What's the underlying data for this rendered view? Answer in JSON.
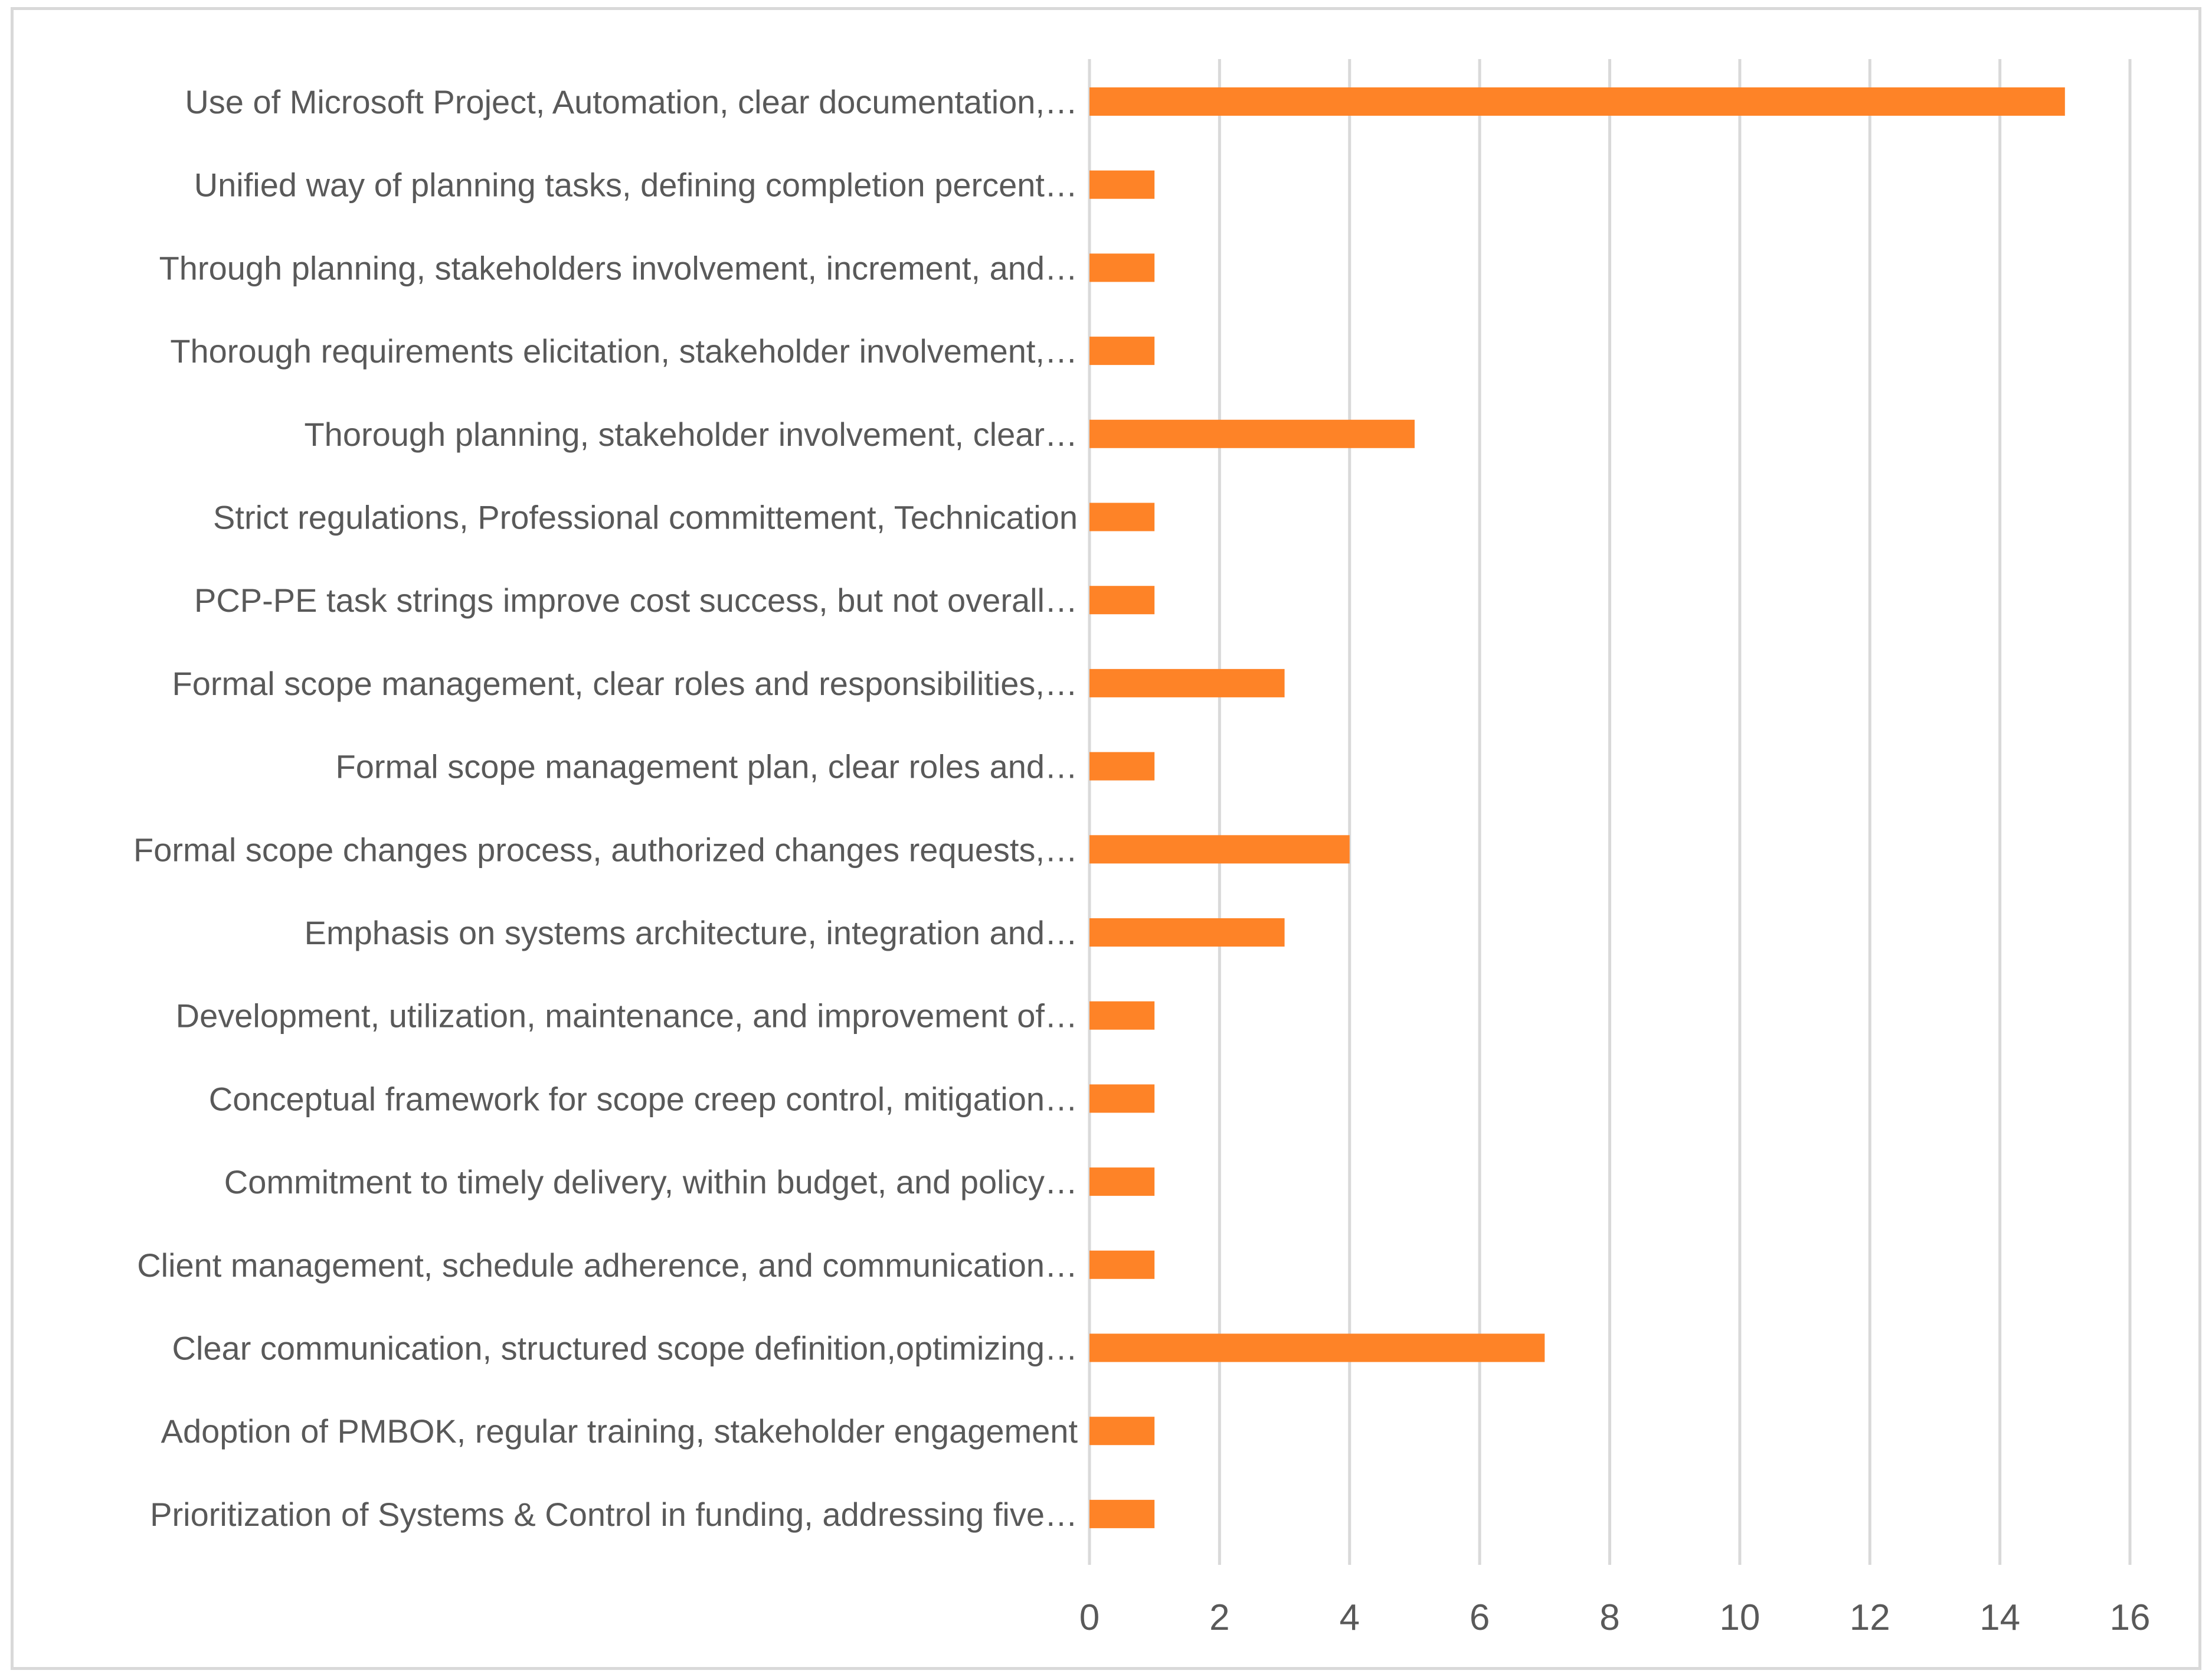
{
  "chart_data": {
    "type": "bar",
    "orientation": "horizontal",
    "title": "",
    "xlabel": "",
    "ylabel": "",
    "xlim": [
      0,
      16
    ],
    "x_ticks": [
      0,
      2,
      4,
      6,
      8,
      10,
      12,
      14,
      16
    ],
    "grid": "vertical",
    "legend": "none",
    "bar_color": "#fe8327",
    "gridline_color": "#d9d9d9",
    "label_color": "#595959",
    "categories": [
      "Use of Microsoft Project, Automation, clear documentation,…",
      "Unified way of planning tasks, defining completion percent…",
      "Through planning, stakeholders involvement, increment, and…",
      "Thorough requirements elicitation, stakeholder involvement,…",
      "Thorough planning, stakeholder involvement, clear…",
      "Strict regulations, Professional committement, Technication",
      "PCP-PE task strings improve cost success, but not overall…",
      "Formal scope management, clear roles and responsibilities,…",
      "Formal scope management plan, clear roles and…",
      "Formal scope changes process, authorized changes requests,…",
      "Emphasis on systems architecture, integration and…",
      "Development, utilization, maintenance, and improvement of…",
      "Conceptual framework for scope creep control, mitigation…",
      "Commitment to timely delivery, within budget, and policy…",
      "Client management, schedule adherence, and communication…",
      "Clear communication, structured scope definition,optimizing…",
      "Adoption of PMBOK, regular training, stakeholder engagement",
      "Prioritization of Systems & Control in funding, addressing five…"
    ],
    "values": [
      15,
      1,
      1,
      1,
      5,
      1,
      1,
      3,
      1,
      4,
      3,
      1,
      1,
      1,
      1,
      7,
      1,
      1
    ]
  }
}
